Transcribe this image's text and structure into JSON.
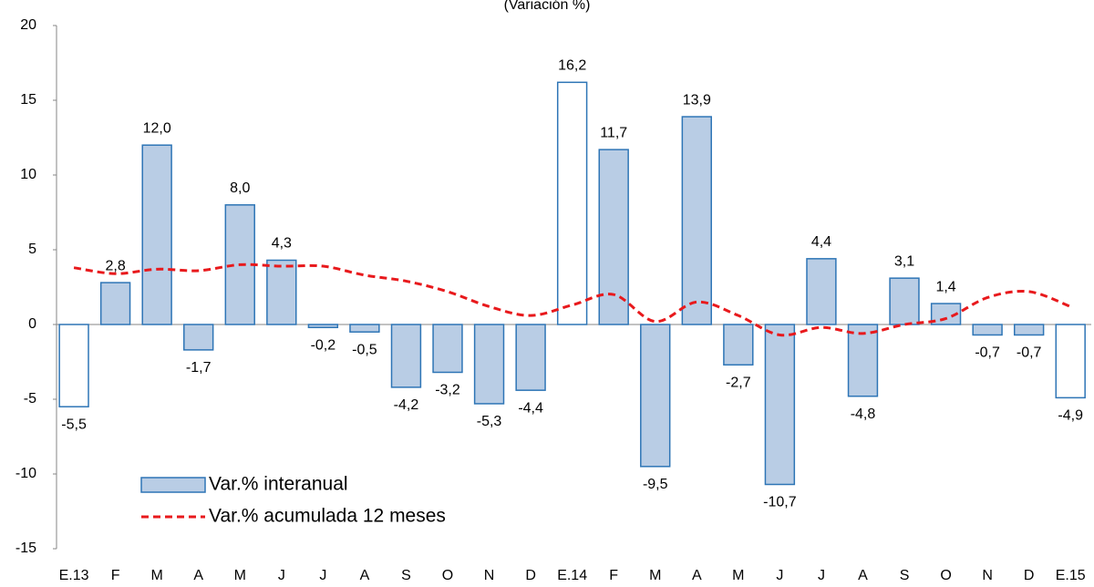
{
  "chart_data": {
    "type": "bar",
    "title": "(Variación %)",
    "categories": [
      "E.13",
      "F",
      "M",
      "A",
      "M",
      "J",
      "J",
      "A",
      "S",
      "O",
      "N",
      "D",
      "E.14",
      "F",
      "M",
      "A",
      "M",
      "J",
      "J",
      "A",
      "S",
      "O",
      "N",
      "D",
      "E.15"
    ],
    "series": [
      {
        "name": "Var.% interanual",
        "type": "bar",
        "color": "#b9cde5",
        "edgecolor": "#2e75b6",
        "colors": [
          "#ffffff",
          "#b9cde5",
          "#b9cde5",
          "#b9cde5",
          "#b9cde5",
          "#b9cde5",
          "#b9cde5",
          "#b9cde5",
          "#b9cde5",
          "#b9cde5",
          "#b9cde5",
          "#b9cde5",
          "#ffffff",
          "#b9cde5",
          "#b9cde5",
          "#b9cde5",
          "#b9cde5",
          "#b9cde5",
          "#b9cde5",
          "#b9cde5",
          "#b9cde5",
          "#b9cde5",
          "#b9cde5",
          "#b9cde5",
          "#ffffff"
        ],
        "values": [
          -5.5,
          2.8,
          12.0,
          -1.7,
          8.0,
          4.3,
          -0.2,
          -0.5,
          -4.2,
          -3.2,
          -5.3,
          -4.4,
          16.2,
          11.7,
          -9.5,
          13.9,
          -2.7,
          -10.7,
          4.4,
          -4.8,
          3.1,
          1.4,
          -0.7,
          -0.7,
          -4.9
        ],
        "value_labels": [
          "-5,5",
          "2,8",
          "12,0",
          "-1,7",
          "8,0",
          "4,3",
          "-0,2",
          "-0,5",
          "-4,2",
          "-3,2",
          "-5,3",
          "-4,4",
          "16,2",
          "11,7",
          "-9,5",
          "13,9",
          "-2,7",
          "-10,7",
          "4,4",
          "-4,8",
          "3,1",
          "1,4",
          "-0,7",
          "-0,7",
          "-4,9"
        ]
      },
      {
        "name": "Var.% acumulada 12 meses",
        "type": "line",
        "color": "#e8191c",
        "dashed": true,
        "values": [
          3.8,
          3.4,
          3.7,
          3.6,
          4.0,
          3.9,
          3.9,
          3.3,
          2.9,
          2.2,
          1.2,
          0.6,
          1.3,
          2.0,
          0.2,
          1.5,
          0.6,
          -0.7,
          -0.2,
          -0.6,
          0.0,
          0.4,
          1.8,
          2.2,
          1.2
        ]
      }
    ],
    "ylim": [
      -15,
      20
    ],
    "yticks": [
      -15,
      -10,
      -5,
      0,
      5,
      10,
      15,
      20
    ],
    "grid": false,
    "legend": "lower left"
  }
}
